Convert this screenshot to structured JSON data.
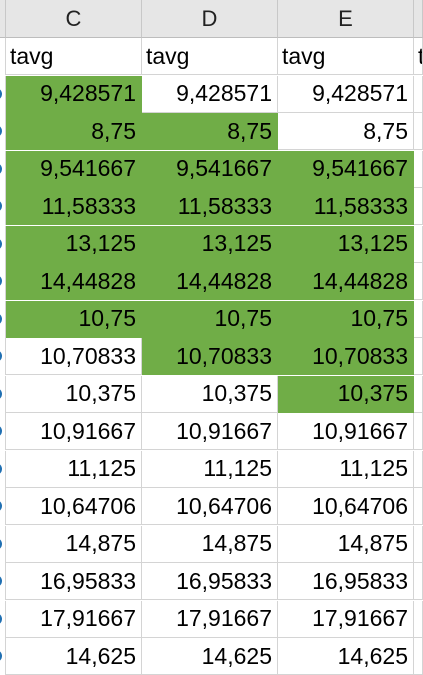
{
  "columns": [
    {
      "letter": "C",
      "header": "tavg"
    },
    {
      "letter": "D",
      "header": "tavg"
    },
    {
      "letter": "E",
      "header": "tavg"
    },
    {
      "letter": "",
      "header": "t"
    }
  ],
  "rows": [
    {
      "values": [
        "9,428571",
        "9,428571",
        "9,428571"
      ],
      "green": [
        true,
        false,
        false
      ]
    },
    {
      "values": [
        "8,75",
        "8,75",
        "8,75"
      ],
      "green": [
        true,
        true,
        false
      ]
    },
    {
      "values": [
        "9,541667",
        "9,541667",
        "9,541667"
      ],
      "green": [
        true,
        true,
        true
      ]
    },
    {
      "values": [
        "11,58333",
        "11,58333",
        "11,58333"
      ],
      "green": [
        true,
        true,
        true
      ]
    },
    {
      "values": [
        "13,125",
        "13,125",
        "13,125"
      ],
      "green": [
        true,
        true,
        true
      ]
    },
    {
      "values": [
        "14,44828",
        "14,44828",
        "14,44828"
      ],
      "green": [
        true,
        true,
        true
      ]
    },
    {
      "values": [
        "10,75",
        "10,75",
        "10,75"
      ],
      "green": [
        true,
        true,
        true
      ]
    },
    {
      "values": [
        "10,70833",
        "10,70833",
        "10,70833"
      ],
      "green": [
        false,
        true,
        true
      ]
    },
    {
      "values": [
        "10,375",
        "10,375",
        "10,375"
      ],
      "green": [
        false,
        false,
        true
      ]
    },
    {
      "values": [
        "10,91667",
        "10,91667",
        "10,91667"
      ],
      "green": [
        false,
        false,
        false
      ]
    },
    {
      "values": [
        "11,125",
        "11,125",
        "11,125"
      ],
      "green": [
        false,
        false,
        false
      ]
    },
    {
      "values": [
        "10,64706",
        "10,64706",
        "10,64706"
      ],
      "green": [
        false,
        false,
        false
      ]
    },
    {
      "values": [
        "14,875",
        "14,875",
        "14,875"
      ],
      "green": [
        false,
        false,
        false
      ]
    },
    {
      "values": [
        "16,95833",
        "16,95833",
        "16,95833"
      ],
      "green": [
        false,
        false,
        false
      ]
    },
    {
      "values": [
        "17,91667",
        "17,91667",
        "17,91667"
      ],
      "green": [
        false,
        false,
        false
      ]
    },
    {
      "values": [
        "14,625",
        "14,625",
        "14,625"
      ],
      "green": [
        false,
        false,
        false
      ]
    }
  ],
  "colors": {
    "highlight": "#70ad47",
    "header_bg": "#e6e6e6",
    "grid": "#d4d4d4"
  }
}
